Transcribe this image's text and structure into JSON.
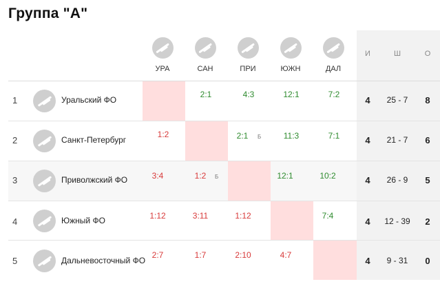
{
  "title": "Группа \"А\"",
  "columns": [
    "УРА",
    "САН",
    "ПРИ",
    "ЮЖН",
    "ДАЛ"
  ],
  "stat_headers": {
    "games": "И",
    "goals": "Ш",
    "points": "О"
  },
  "teams": [
    {
      "pos": "1",
      "name": "Уральский ФО",
      "games": "4",
      "goals": "25 - 7",
      "points": "8",
      "scores": [
        "",
        "2:1",
        "4:3",
        "12:1",
        "7:2"
      ]
    },
    {
      "pos": "2",
      "name": "Санкт-Петербург",
      "games": "4",
      "goals": "21 - 7",
      "points": "6",
      "scores": [
        "1:2",
        "",
        "2:1",
        "11:3",
        "7:1"
      ],
      "marks": {
        "2": "Б"
      }
    },
    {
      "pos": "3",
      "name": "Приволжский ФО",
      "games": "4",
      "goals": "26 - 9",
      "points": "5",
      "scores": [
        "3:4",
        "1:2",
        "",
        "12:1",
        "10:2"
      ],
      "marks": {
        "1": "Б"
      }
    },
    {
      "pos": "4",
      "name": "Южный ФО",
      "games": "4",
      "goals": "12 - 39",
      "points": "2",
      "scores": [
        "1:12",
        "3:11",
        "1:12",
        "",
        "7:4"
      ]
    },
    {
      "pos": "5",
      "name": "Дальневосточный ФО",
      "games": "4",
      "goals": "9 - 31",
      "points": "0",
      "scores": [
        "2:7",
        "1:7",
        "2:10",
        "4:7",
        ""
      ]
    }
  ],
  "colors": {
    "win": "#2e8b2e",
    "loss": "#d83a3a",
    "diagonal": "#ffdede",
    "stats_bg": "#f2f2f2"
  }
}
